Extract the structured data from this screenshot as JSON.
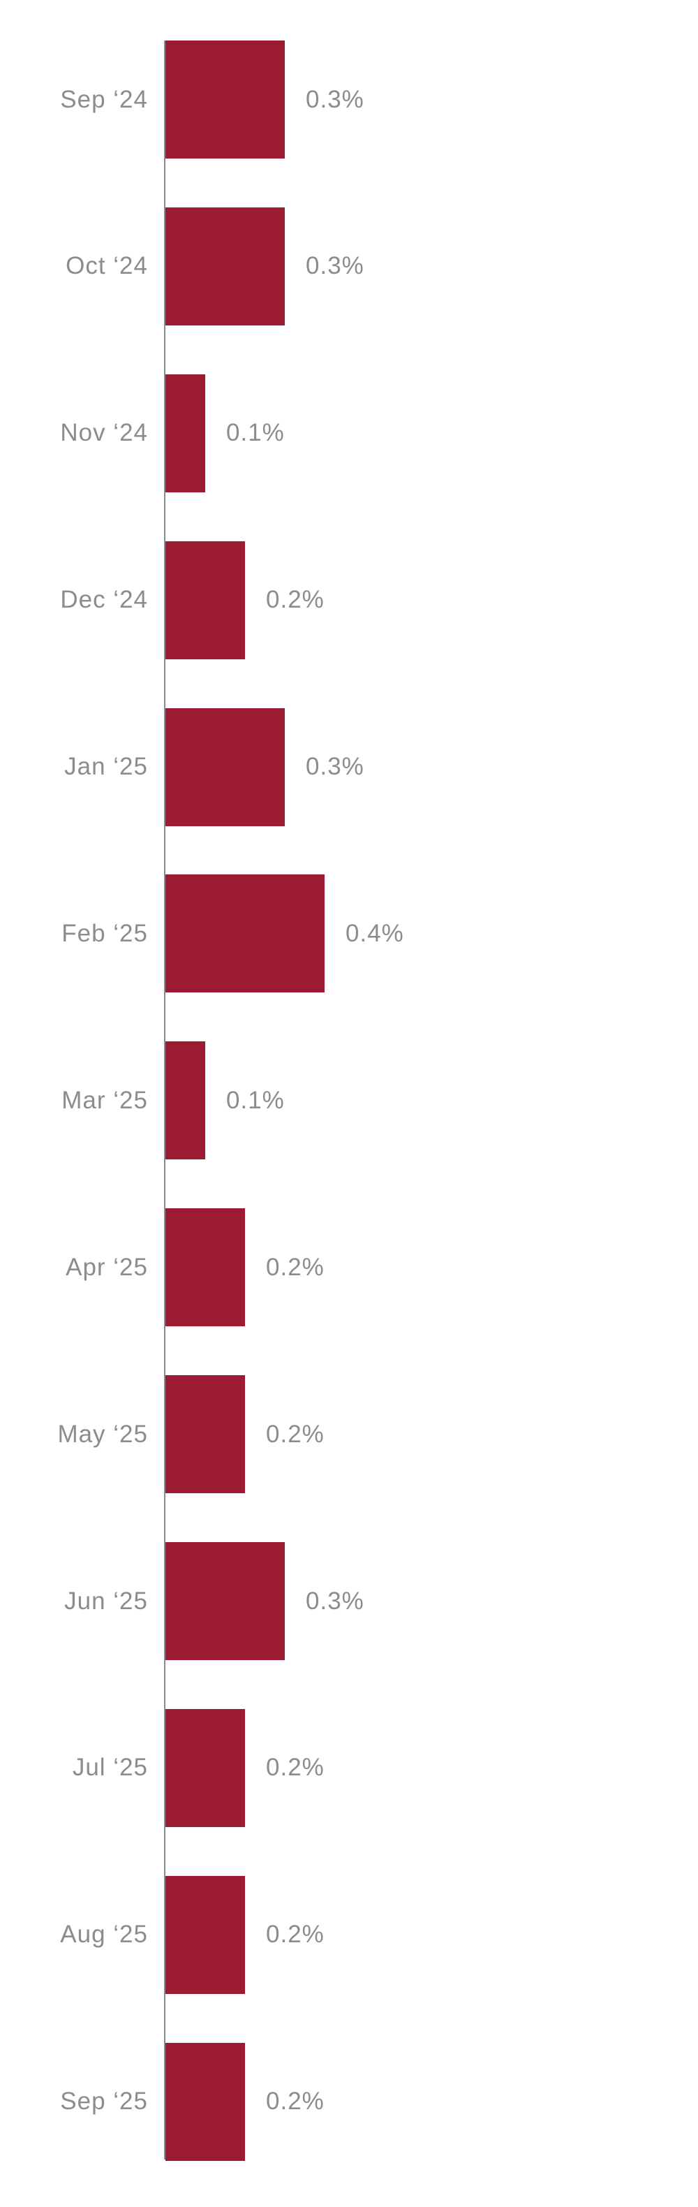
{
  "chart_data": {
    "type": "bar",
    "orientation": "horizontal",
    "title": "",
    "xlabel": "",
    "ylabel": "",
    "categories": [
      "Sep ‘24",
      "Oct ‘24",
      "Nov ‘24",
      "Dec ‘24",
      "Jan ‘25",
      "Feb ‘25",
      "Mar ‘25",
      "Apr ‘25",
      "May ‘25",
      "Jun ‘25",
      "Jul ‘25",
      "Aug ‘25",
      "Sep ‘25"
    ],
    "values": [
      0.3,
      0.3,
      0.1,
      0.2,
      0.3,
      0.4,
      0.1,
      0.2,
      0.2,
      0.3,
      0.2,
      0.2,
      0.2
    ],
    "value_labels": [
      "0.3%",
      "0.3%",
      "0.1%",
      "0.2%",
      "0.3%",
      "0.4%",
      "0.1%",
      "0.2%",
      "0.2%",
      "0.3%",
      "0.2%",
      "0.2%",
      "0.2%"
    ],
    "unit": "%",
    "xlim": [
      0,
      0.45
    ],
    "grid": false,
    "legend": false,
    "value_label_position": "outside-end",
    "colors": {
      "bar": "#9b1b33",
      "axis_line": "#8a8a8a",
      "label_text": "#8c8c8c",
      "background": "#ffffff"
    }
  }
}
